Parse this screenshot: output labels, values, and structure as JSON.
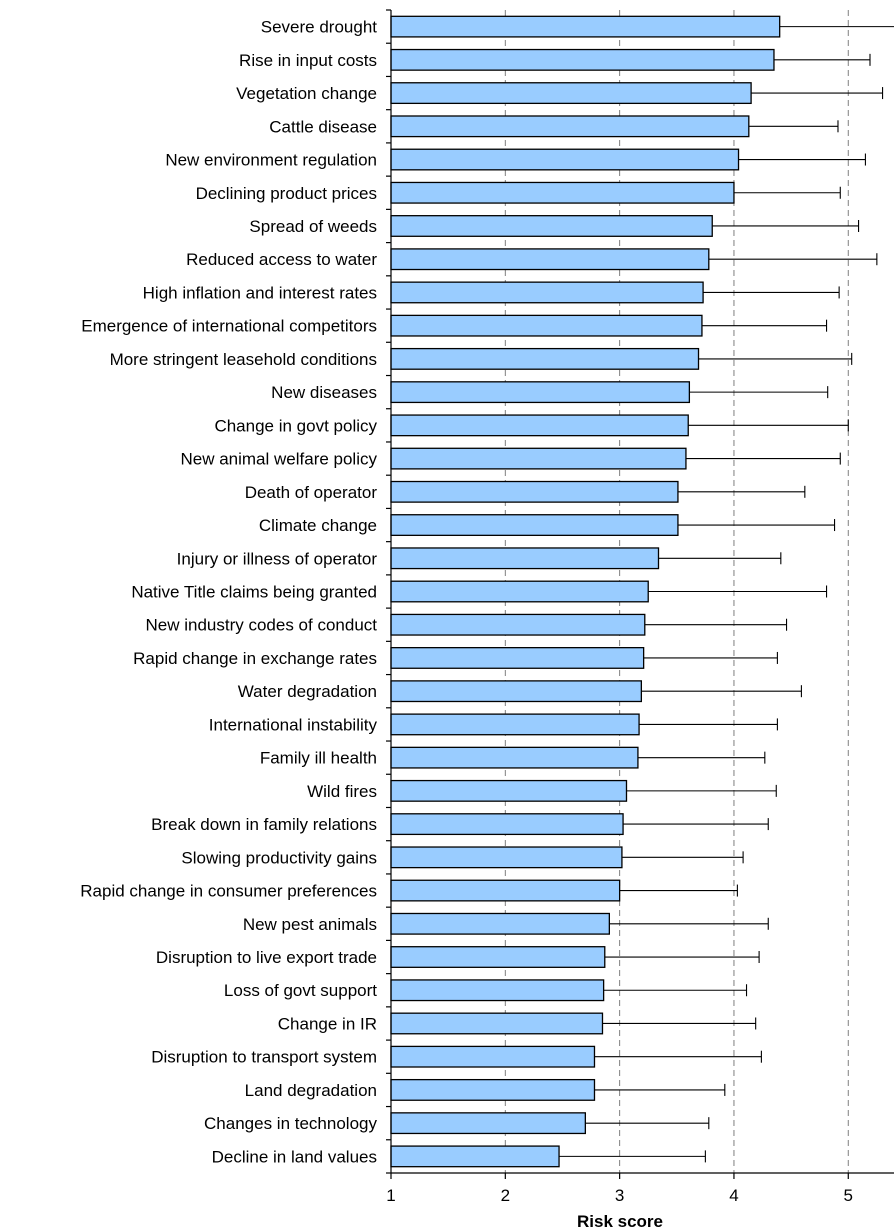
{
  "chart_data": {
    "type": "bar",
    "orientation": "horizontal",
    "xlabel": "Risk score",
    "xlim": [
      1,
      5.4
    ],
    "xticks": [
      1,
      2,
      3,
      4,
      5
    ],
    "grid": "vertical dashed at 2, 3, 4, 5",
    "bar_color": "#99ccff",
    "categories": [
      "Severe drought",
      "Rise in input costs",
      "Vegetation change",
      "Cattle disease",
      "New environment regulation",
      "Declining product prices",
      "Spread of weeds",
      "Reduced access to water",
      "High inflation and interest rates",
      "Emergence of international competitors",
      "More stringent leasehold conditions",
      "New diseases",
      "Change in govt policy",
      "New animal welfare policy",
      "Death of operator",
      "Climate change",
      "Injury or illness of operator",
      "Native Title claims being granted",
      "New industry codes of conduct",
      "Rapid change in exchange rates",
      "Water degradation",
      "International instability",
      "Family ill health",
      "Wild fires",
      "Break down in family relations",
      "Slowing productivity gains",
      "Rapid change in consumer preferences",
      "New pest animals",
      "Disruption to live export trade",
      "Loss of govt support",
      "Change in IR",
      "Disruption to transport system",
      "Land degradation",
      "Changes in technology",
      "Decline in land values"
    ],
    "values": [
      4.4,
      4.35,
      4.15,
      4.13,
      4.04,
      4.0,
      3.81,
      3.78,
      3.73,
      3.72,
      3.69,
      3.61,
      3.6,
      3.58,
      3.51,
      3.51,
      3.34,
      3.25,
      3.22,
      3.21,
      3.19,
      3.17,
      3.16,
      3.06,
      3.03,
      3.02,
      3.0,
      2.91,
      2.87,
      2.86,
      2.85,
      2.78,
      2.78,
      2.7,
      2.47
    ],
    "error_upper": [
      5.42,
      5.19,
      5.3,
      4.91,
      5.15,
      4.93,
      5.09,
      5.25,
      4.92,
      4.81,
      5.03,
      4.82,
      5.0,
      4.93,
      4.62,
      4.88,
      4.41,
      4.81,
      4.46,
      4.38,
      4.59,
      4.38,
      4.27,
      4.37,
      4.3,
      4.08,
      4.03,
      4.3,
      4.22,
      4.11,
      4.19,
      4.24,
      3.92,
      3.78,
      3.75
    ]
  }
}
